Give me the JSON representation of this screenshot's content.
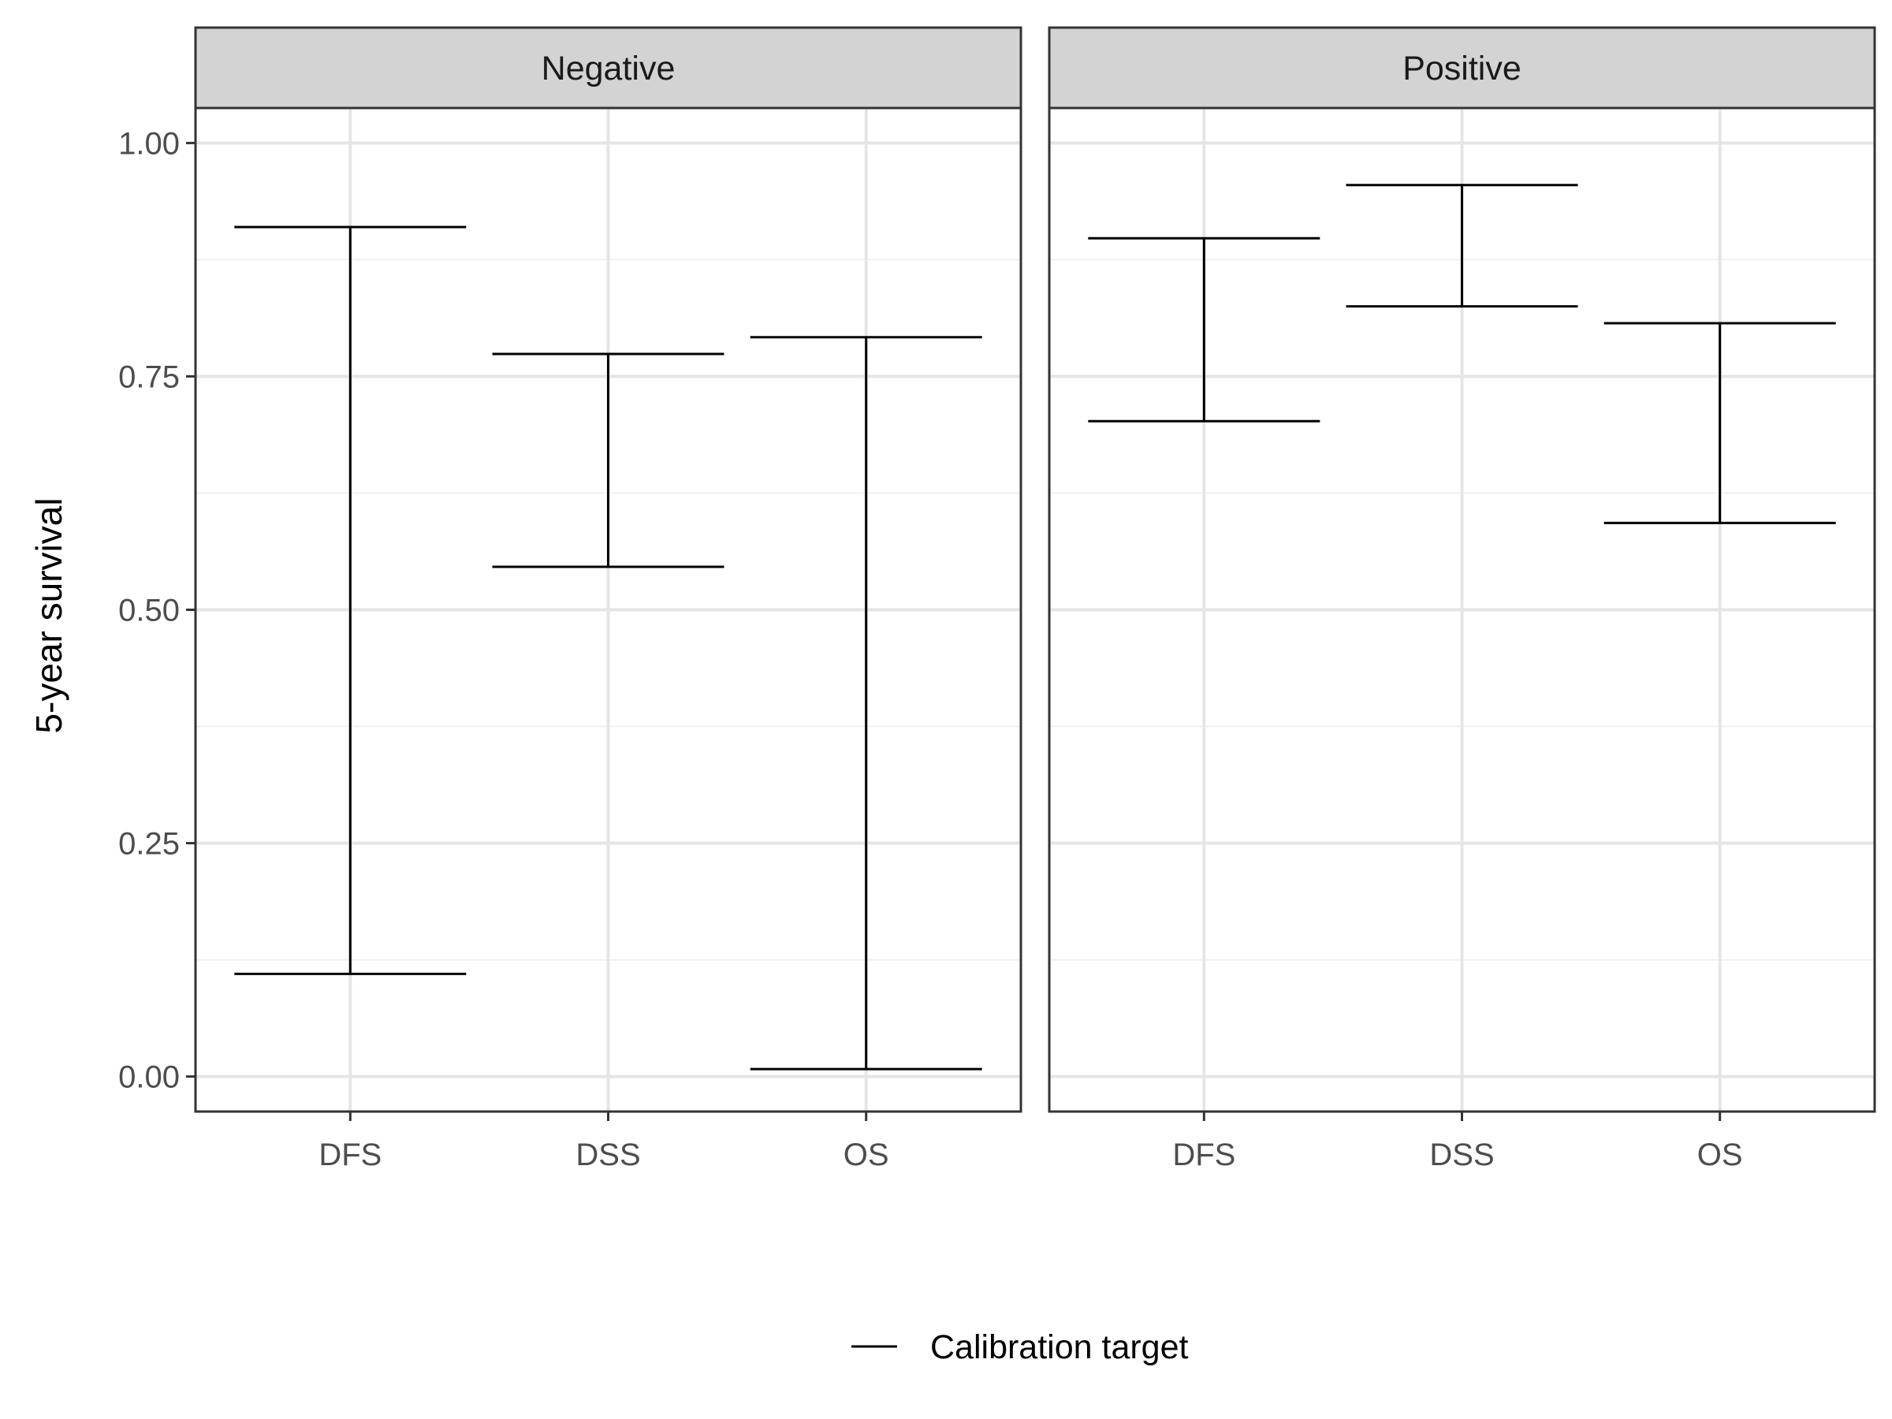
{
  "chart_data": {
    "type": "errorbar",
    "ylabel": "5-year survival",
    "xlabel": "",
    "ylim": [
      -0.0375,
      1.0375
    ],
    "yticks": [
      0.0,
      0.25,
      0.5,
      0.75,
      1.0
    ],
    "ytick_labels": [
      "0.00",
      "0.25",
      "0.50",
      "0.75",
      "1.00"
    ],
    "categories": [
      "DFS",
      "DSS",
      "OS"
    ],
    "grid": true,
    "legend": {
      "position": "bottom",
      "entries": [
        {
          "label": "Calibration target",
          "color": "#000000"
        }
      ]
    },
    "facets": [
      {
        "label": "Negative",
        "bars": [
          {
            "category": "DFS",
            "lower": 0.11,
            "upper": 0.91
          },
          {
            "category": "DSS",
            "lower": 0.546,
            "upper": 0.774
          },
          {
            "category": "OS",
            "lower": 0.008,
            "upper": 0.792
          }
        ]
      },
      {
        "label": "Positive",
        "bars": [
          {
            "category": "DFS",
            "lower": 0.702,
            "upper": 0.898
          },
          {
            "category": "DSS",
            "lower": 0.825,
            "upper": 0.955
          },
          {
            "category": "OS",
            "lower": 0.593,
            "upper": 0.807
          }
        ]
      }
    ],
    "colors": {
      "bar": "#000000",
      "strip": "#d3d3d3",
      "grid_major": "#e5e5e5",
      "grid_minor": "#f0f0f0",
      "text": "#4d4d4d"
    }
  }
}
